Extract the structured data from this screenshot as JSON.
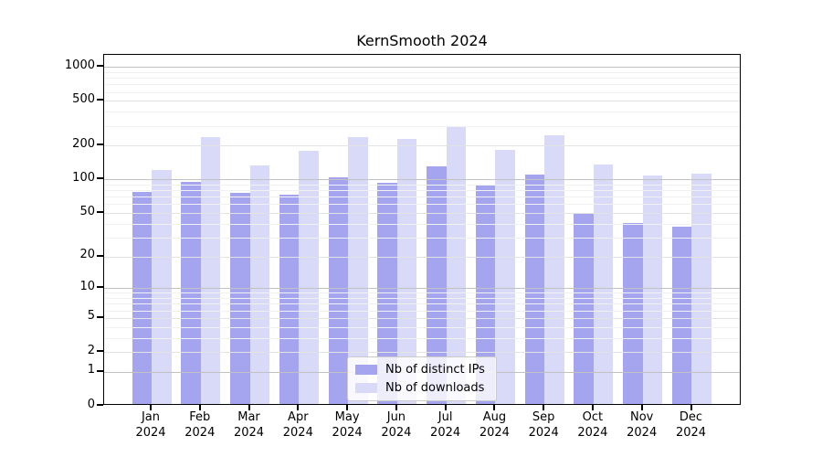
{
  "figure": {
    "title": "KernSmooth 2024"
  },
  "legend": {
    "items": [
      {
        "label": "Nb of distinct IPs",
        "key": "distinct_ips"
      },
      {
        "label": "Nb of downloads",
        "key": "downloads"
      }
    ]
  },
  "colors": {
    "distinct_ips": "#a5a5ef",
    "downloads": "#d9d9f8",
    "grid_major": "#c2c2c2",
    "grid_mid": "#e3e3e3",
    "grid_minor": "#f1f1f1",
    "spine": "#000000",
    "legend_border": "#cbcbcb"
  },
  "chart_data": {
    "type": "bar",
    "title": "KernSmooth 2024",
    "yscale": "log1p",
    "ylim": [
      0,
      1280
    ],
    "grid": true,
    "legend_position": "lower center",
    "categories": [
      "Jan 2024",
      "Feb 2024",
      "Mar 2024",
      "Apr 2024",
      "May 2024",
      "Jun 2024",
      "Jul 2024",
      "Aug 2024",
      "Sep 2024",
      "Oct 2024",
      "Nov 2024",
      "Dec 2024"
    ],
    "x_tick_month": [
      "Jan",
      "Feb",
      "Mar",
      "Apr",
      "May",
      "Jun",
      "Jul",
      "Aug",
      "Sep",
      "Oct",
      "Nov",
      "Dec"
    ],
    "x_tick_year": "2024",
    "y_major_ticks": [
      0,
      1,
      2,
      5,
      10,
      20,
      50,
      100,
      200,
      500,
      1000
    ],
    "y_power_ticks": [
      1,
      10,
      100,
      1000
    ],
    "y_minor_ticks": [
      3,
      4,
      6,
      7,
      8,
      9,
      30,
      40,
      60,
      70,
      80,
      90,
      300,
      400,
      600,
      700,
      800,
      900
    ],
    "series": [
      {
        "name": "Nb of distinct IPs",
        "key": "distinct_ips",
        "values": [
          74,
          91,
          73,
          71,
          101,
          90,
          127,
          86,
          106,
          48,
          39,
          36
        ]
      },
      {
        "name": "Nb of downloads",
        "key": "downloads",
        "values": [
          117,
          230,
          129,
          175,
          230,
          220,
          287,
          178,
          240,
          131,
          104,
          109
        ]
      }
    ]
  }
}
